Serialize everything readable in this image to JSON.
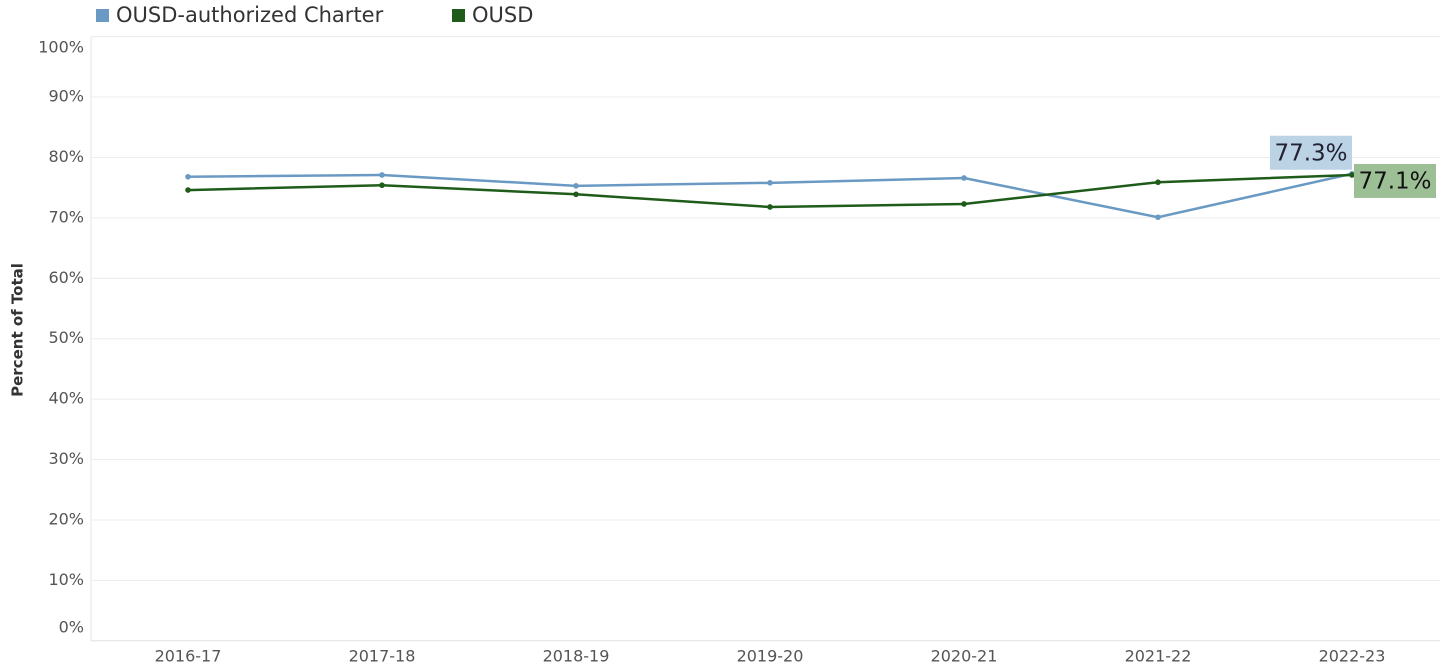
{
  "chart_data": {
    "type": "line",
    "y_label": "Percent of Total",
    "categories": [
      "2016-17",
      "2017-18",
      "2018-19",
      "2019-20",
      "2020-21",
      "2021-22",
      "2022-23"
    ],
    "series": [
      {
        "name": "OUSD-authorized Charter",
        "color": "#6a9ac4",
        "label_bg": "#bcd3e6",
        "values": [
          76.8,
          77.1,
          75.3,
          75.8,
          76.6,
          70.1,
          77.3
        ],
        "value_labels": [
          null,
          null,
          null,
          null,
          null,
          null,
          "77.3%"
        ]
      },
      {
        "name": "OUSD",
        "color": "#1f5c1a",
        "label_bg": "#9dbf96",
        "values": [
          74.6,
          75.4,
          73.9,
          71.8,
          72.3,
          75.9,
          77.1
        ],
        "value_labels": [
          null,
          null,
          null,
          null,
          null,
          null,
          "77.1%"
        ]
      }
    ],
    "ylim": [
      0,
      100
    ],
    "yticks": [
      {
        "value": 0,
        "label": "0%"
      },
      {
        "value": 10,
        "label": "10%"
      },
      {
        "value": 20,
        "label": "20%"
      },
      {
        "value": 30,
        "label": "30%"
      },
      {
        "value": 40,
        "label": "40%"
      },
      {
        "value": 50,
        "label": "50%"
      },
      {
        "value": 60,
        "label": "60%"
      },
      {
        "value": 70,
        "label": "70%"
      },
      {
        "value": 80,
        "label": "80%"
      },
      {
        "value": 90,
        "label": "90%"
      },
      {
        "value": 100,
        "label": "100%"
      }
    ],
    "grid": true
  }
}
